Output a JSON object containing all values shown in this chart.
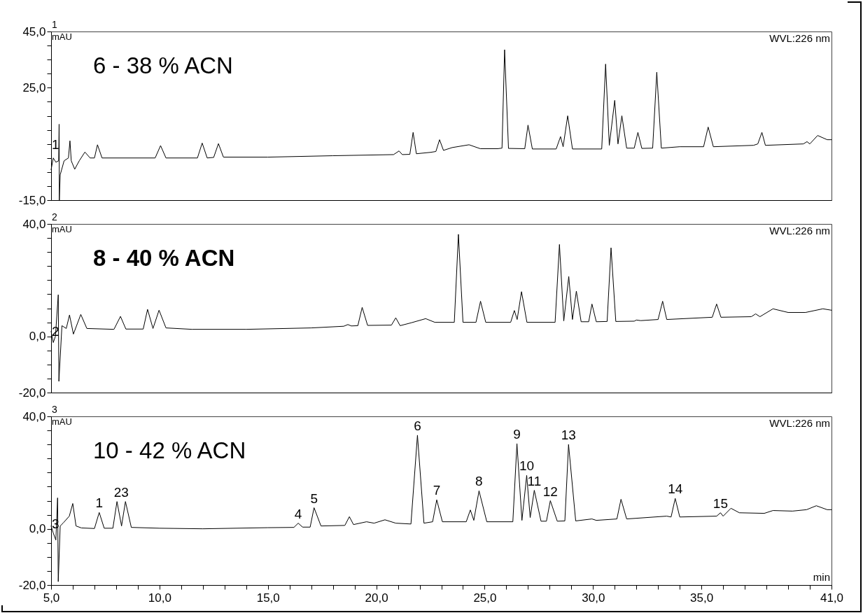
{
  "chart_data": [
    {
      "type": "line",
      "title": "6 - 38 % ACN",
      "subtitle": "1",
      "ylabel": "mAU",
      "annotations": [
        "WVL:226 nm",
        {
          "text": "1",
          "x": 5.2,
          "y": 1.5
        }
      ],
      "xlim": [
        5,
        41
      ],
      "ylim": [
        -15,
        45
      ],
      "yticks": [
        {
          "value": -15,
          "label": "-15,0"
        },
        {
          "value": -10,
          "label": null
        },
        {
          "value": -5,
          "label": null
        },
        {
          "value": 0,
          "label": null
        },
        {
          "value": 5,
          "label": null
        },
        {
          "value": 10,
          "label": null
        },
        {
          "value": 15,
          "label": null
        },
        {
          "value": 20,
          "label": null
        },
        {
          "value": 25,
          "label": "25,0"
        },
        {
          "value": 30,
          "label": null
        },
        {
          "value": 35,
          "label": null
        },
        {
          "value": 40,
          "label": null
        },
        {
          "value": 45,
          "label": "45,0"
        }
      ],
      "tick_labels": "y",
      "series": [
        {
          "color": "#000000",
          "x": [
            5.0,
            5.1,
            5.22,
            5.35,
            5.37,
            5.38,
            5.42,
            5.6,
            5.8,
            5.87,
            5.93,
            6.09,
            6.3,
            6.56,
            6.8,
            7.0,
            7.14,
            7.35,
            9.8,
            10.05,
            10.3,
            11.75,
            11.97,
            12.2,
            12.5,
            12.72,
            12.95,
            15,
            18,
            20.8,
            21.05,
            21.2,
            21.55,
            21.7,
            21.85,
            22.5,
            22.75,
            22.92,
            23.1,
            23.5,
            24.28,
            24.8,
            25.6,
            25.8,
            25.92,
            26.1,
            26.85,
            27.0,
            27.2,
            28.3,
            28.5,
            28.62,
            28.83,
            29.05,
            30.4,
            30.58,
            30.75,
            31.0,
            31.15,
            31.33,
            31.55,
            31.9,
            32.07,
            32.25,
            32.75,
            32.94,
            33.15,
            34.0,
            35.1,
            35.31,
            35.55,
            37.4,
            37.6,
            37.79,
            37.95,
            39.7,
            39.87,
            40.0,
            40.36,
            40.8,
            41.0
          ],
          "values": [
            -4.2,
            0,
            -1.5,
            -1,
            12,
            -15,
            -6,
            -1,
            0,
            6.1,
            -1,
            -4.0,
            -1,
            2.1,
            0,
            0,
            4.7,
            0,
            0,
            4.4,
            0,
            0,
            5.3,
            0,
            0.2,
            5.1,
            0.3,
            0.3,
            0.8,
            1.2,
            2.5,
            1.2,
            1.3,
            9.1,
            1.5,
            2.0,
            2.3,
            6.5,
            2.7,
            3.7,
            4.7,
            3.3,
            3.3,
            3.5,
            38.5,
            3.4,
            3.3,
            11.7,
            3.2,
            3.2,
            7.6,
            4.0,
            15.0,
            3.2,
            3.2,
            33.4,
            4.5,
            20.5,
            5,
            15.0,
            3.5,
            3.5,
            9.1,
            3.4,
            3.5,
            30.5,
            3.5,
            4.0,
            4.0,
            11.0,
            4.0,
            4.5,
            5.0,
            9.1,
            4.5,
            5.0,
            5.8,
            5.0,
            8.0,
            6.5,
            6.5
          ]
        }
      ]
    },
    {
      "type": "line",
      "title": "8 - 40 % ACN",
      "subtitle": "2",
      "ylabel": "mAU",
      "annotations": [
        "WVL:226 nm",
        {
          "text": "2",
          "x": 5.2,
          "y": -1.5
        }
      ],
      "xlim": [
        5,
        41
      ],
      "ylim": [
        -20,
        40
      ],
      "yticks": [
        {
          "value": -20,
          "label": "-20,0"
        },
        {
          "value": -15,
          "label": null
        },
        {
          "value": -10,
          "label": null
        },
        {
          "value": -5,
          "label": null
        },
        {
          "value": 0,
          "label": "0,0"
        },
        {
          "value": 5,
          "label": null
        },
        {
          "value": 10,
          "label": null
        },
        {
          "value": 15,
          "label": null
        },
        {
          "value": 20,
          "label": null
        },
        {
          "value": 25,
          "label": null
        },
        {
          "value": 30,
          "label": null
        },
        {
          "value": 35,
          "label": null
        },
        {
          "value": 40,
          "label": "40,0"
        }
      ],
      "tick_labels": "y",
      "series": [
        {
          "color": "#000000",
          "x": [
            5.0,
            5.1,
            5.2,
            5.33,
            5.36,
            5.5,
            5.7,
            5.85,
            6.03,
            6.37,
            6.65,
            7.9,
            8.2,
            8.45,
            9.25,
            9.45,
            9.7,
            9.98,
            10.3,
            11.5,
            14,
            17,
            18.5,
            18.69,
            18.85,
            19.15,
            19.35,
            19.6,
            20.7,
            20.9,
            21.1,
            21.6,
            22.28,
            22.7,
            23.6,
            23.79,
            24.0,
            24.6,
            24.81,
            25.05,
            26.2,
            26.37,
            26.5,
            26.7,
            26.95,
            28.25,
            28.45,
            28.65,
            28.88,
            29.05,
            29.23,
            29.45,
            29.8,
            29.95,
            30.15,
            30.65,
            30.83,
            31.05,
            31.9,
            32.0,
            32.2,
            33.0,
            33.21,
            33.4,
            35.5,
            35.7,
            35.9,
            37.3,
            37.5,
            37.7,
            38.3,
            39.0,
            39.8,
            40.6,
            41.0
          ],
          "values": [
            1.8,
            -2.2,
            0,
            14.8,
            -16,
            3.8,
            2.8,
            7.6,
            0.8,
            7.8,
            2.8,
            2.5,
            7.1,
            2.6,
            2.6,
            9.6,
            2.8,
            9.3,
            3.0,
            2.5,
            2.5,
            3.0,
            3.6,
            4.2,
            3.7,
            3.8,
            10.3,
            3.9,
            4.0,
            6.6,
            3.8,
            4.8,
            6.3,
            5.0,
            5.0,
            36.3,
            5.0,
            5.0,
            12.5,
            5.0,
            5.0,
            9.2,
            6,
            15.9,
            5.0,
            5.0,
            32.7,
            5.5,
            21.3,
            6,
            16.1,
            5.2,
            5.2,
            11.5,
            5.2,
            5.3,
            31.5,
            5.3,
            5.4,
            5.8,
            5.6,
            6.0,
            12.5,
            6.0,
            6.8,
            11.5,
            6.8,
            7.0,
            8.0,
            7.0,
            9.8,
            8.5,
            8.5,
            9.8,
            9.3
          ]
        }
      ]
    },
    {
      "type": "line",
      "title": "10 - 42 % ACN",
      "subtitle": "3",
      "ylabel": "mAU",
      "xlabel": "min",
      "annotations": [
        "WVL:226 nm",
        {
          "text": "3",
          "x": 5.2,
          "y": -1.5
        },
        {
          "text": "1",
          "x": 7.22,
          "y": 5.8
        },
        {
          "text": "23",
          "x": 8.24,
          "y": 9.7
        },
        {
          "text": "4",
          "x": 16.4,
          "y": 2.0
        },
        {
          "text": "5",
          "x": 17.13,
          "y": 7.5
        },
        {
          "text": "6",
          "x": 21.9,
          "y": 33.3
        },
        {
          "text": "7",
          "x": 22.79,
          "y": 10.3
        },
        {
          "text": "8",
          "x": 24.74,
          "y": 13.5
        },
        {
          "text": "9",
          "x": 26.49,
          "y": 30.3
        },
        {
          "text": "10",
          "x": 26.94,
          "y": 19.0
        },
        {
          "text": "11",
          "x": 27.29,
          "y": 13.7
        },
        {
          "text": "12",
          "x": 28.03,
          "y": 10.0
        },
        {
          "text": "13",
          "x": 28.87,
          "y": 30.0
        },
        {
          "text": "14",
          "x": 33.79,
          "y": 10.8
        },
        {
          "text": "15",
          "x": 35.88,
          "y": 5.7
        }
      ],
      "xlim": [
        5,
        41
      ],
      "xticks": [
        {
          "value": 5,
          "label": "5,0"
        },
        {
          "value": 6,
          "label": null
        },
        {
          "value": 7,
          "label": null
        },
        {
          "value": 8,
          "label": null
        },
        {
          "value": 9,
          "label": null
        },
        {
          "value": 10,
          "label": "10,0"
        },
        {
          "value": 11,
          "label": null
        },
        {
          "value": 12,
          "label": null
        },
        {
          "value": 13,
          "label": null
        },
        {
          "value": 14,
          "label": null
        },
        {
          "value": 15,
          "label": "15,0"
        },
        {
          "value": 16,
          "label": null
        },
        {
          "value": 17,
          "label": null
        },
        {
          "value": 18,
          "label": null
        },
        {
          "value": 19,
          "label": null
        },
        {
          "value": 20,
          "label": "20,0"
        },
        {
          "value": 21,
          "label": null
        },
        {
          "value": 22,
          "label": null
        },
        {
          "value": 23,
          "label": null
        },
        {
          "value": 24,
          "label": null
        },
        {
          "value": 25,
          "label": "25,0"
        },
        {
          "value": 26,
          "label": null
        },
        {
          "value": 27,
          "label": null
        },
        {
          "value": 28,
          "label": null
        },
        {
          "value": 29,
          "label": null
        },
        {
          "value": 30,
          "label": "30,0"
        },
        {
          "value": 31,
          "label": null
        },
        {
          "value": 32,
          "label": null
        },
        {
          "value": 33,
          "label": null
        },
        {
          "value": 34,
          "label": null
        },
        {
          "value": 35,
          "label": "35,0"
        },
        {
          "value": 36,
          "label": null
        },
        {
          "value": 37,
          "label": null
        },
        {
          "value": 38,
          "label": null
        },
        {
          "value": 39,
          "label": null
        },
        {
          "value": 40,
          "label": null
        },
        {
          "value": 41,
          "label": "41,0"
        }
      ],
      "ylim": [
        -20,
        40
      ],
      "yticks": [
        {
          "value": -20,
          "label": "-20,0"
        },
        {
          "value": -15,
          "label": null
        },
        {
          "value": -10,
          "label": null
        },
        {
          "value": -5,
          "label": null
        },
        {
          "value": 0,
          "label": "0,0"
        },
        {
          "value": 5,
          "label": null
        },
        {
          "value": 10,
          "label": null
        },
        {
          "value": 15,
          "label": null
        },
        {
          "value": 20,
          "label": null
        },
        {
          "value": 25,
          "label": null
        },
        {
          "value": 30,
          "label": null
        },
        {
          "value": 35,
          "label": null
        },
        {
          "value": 40,
          "label": "40,0"
        }
      ],
      "series": [
        {
          "color": "#000000",
          "x": [
            5.0,
            5.1,
            5.22,
            5.3,
            5.33,
            5.42,
            5.55,
            5.84,
            6.0,
            6.15,
            6.4,
            7.0,
            7.22,
            7.45,
            7.85,
            8.04,
            8.25,
            8.43,
            8.7,
            10,
            12,
            15,
            16.2,
            16.4,
            16.6,
            16.95,
            17.13,
            17.45,
            18.55,
            18.76,
            18.95,
            19.55,
            19.9,
            20.4,
            20.9,
            21.6,
            21.9,
            22.2,
            22.6,
            22.79,
            23.05,
            24.15,
            24.34,
            24.5,
            24.74,
            25.1,
            26.3,
            26.49,
            26.72,
            26.94,
            27.1,
            27.29,
            27.6,
            27.85,
            28.03,
            28.35,
            28.7,
            28.87,
            29.2,
            29.95,
            30.15,
            31.1,
            31.29,
            31.55,
            33.4,
            33.6,
            33.79,
            34.0,
            35.7,
            35.88,
            36.0,
            36.36,
            36.75,
            37.9,
            38.3,
            39.2,
            39.85,
            40.3,
            40.8,
            41.0
          ],
          "values": [
            1.0,
            -1.5,
            -4.0,
            11.0,
            -18.8,
            1.0,
            2.0,
            4.5,
            9.0,
            1.0,
            0.3,
            0.1,
            5.8,
            0.2,
            0.2,
            9.7,
            1.0,
            9.7,
            0.5,
            0.2,
            0,
            0.4,
            0.5,
            2.0,
            0.6,
            0.6,
            7.5,
            1.0,
            1.2,
            4.3,
            1.5,
            2.5,
            2.0,
            3.2,
            2.0,
            1.7,
            33.3,
            2.0,
            2.5,
            10.3,
            2.5,
            2.5,
            6.7,
            3.0,
            13.5,
            2.5,
            2.5,
            30.3,
            3.0,
            19.0,
            4,
            13.7,
            2.7,
            2.7,
            10.0,
            2.7,
            2.8,
            30.0,
            2.8,
            3.5,
            3.0,
            3.5,
            10.5,
            3.5,
            4.5,
            4.2,
            10.8,
            4.2,
            4.5,
            5.7,
            4.5,
            7.3,
            5.7,
            5.5,
            6.5,
            6.3,
            6.8,
            8.2,
            6.8,
            6.8
          ]
        }
      ]
    }
  ]
}
